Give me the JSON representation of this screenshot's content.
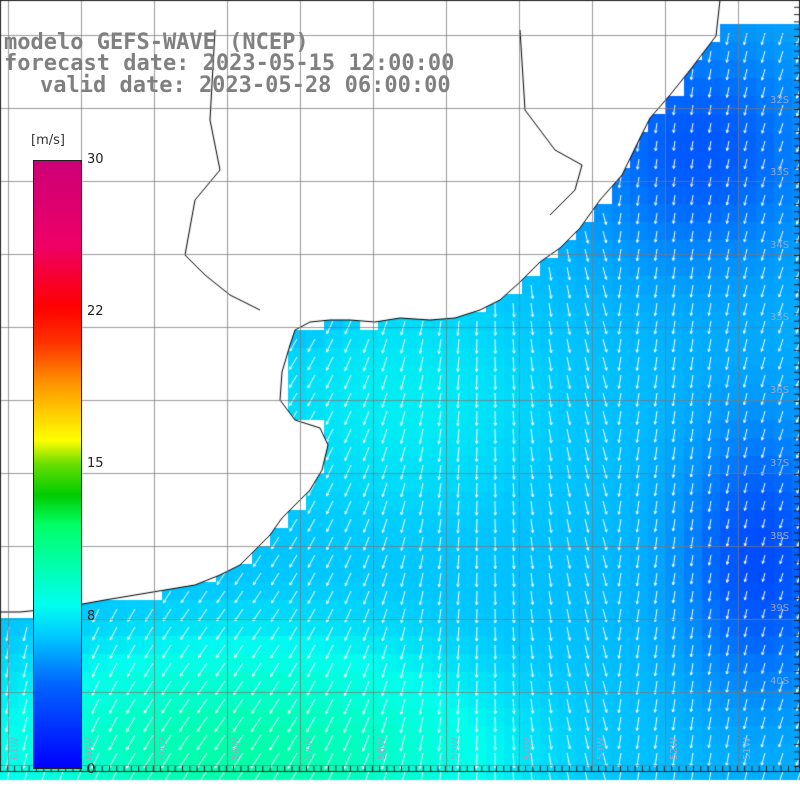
{
  "header": {
    "model": "modelo GEFS-WAVE (NCEP)",
    "forecast": "forecast date: 2023-05-15 12:00:00",
    "valid": "valid date: 2023-05-28 06:00:00"
  },
  "colorbar": {
    "unit": "[m/s]",
    "ticks": [
      "30",
      "22",
      "15",
      "8",
      "0"
    ],
    "min": 0,
    "max": 30,
    "colors": {
      "low": "#0000ff",
      "mid_low": "#00ffee",
      "mid": "#00cc00",
      "high": "#ffff00",
      "very_high": "#ff0000",
      "max": "#cc0077"
    }
  },
  "axes": {
    "lat_labels": [
      "32S",
      "33S",
      "34S",
      "35S",
      "36S",
      "37S",
      "38S",
      "39S",
      "40S"
    ],
    "lon_labels": [
      "61W",
      "60W",
      "59W",
      "58W",
      "57W",
      "56W",
      "55W",
      "54W",
      "53W",
      "52W",
      "51W"
    ]
  },
  "map": {
    "grid": true,
    "coastline_color": "#000000",
    "land_color": "#ffffff",
    "arrow_color": "#ffffff",
    "wind_field": "colored cells with wind direction arrows over ocean"
  }
}
